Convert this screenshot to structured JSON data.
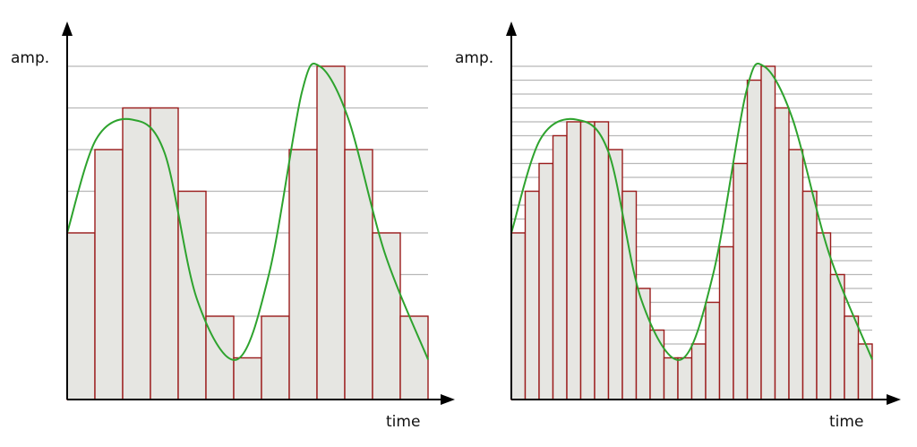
{
  "chart_data": [
    {
      "type": "bar",
      "ylabel": "amp.",
      "xlabel": "time",
      "levels": 8,
      "samples": 13,
      "values": [
        4,
        6,
        7,
        7,
        5,
        2,
        1,
        2,
        6,
        8,
        6,
        4,
        2
      ],
      "curve": {
        "type": "line",
        "description": "continuous analog signal",
        "color": "#2ea32e"
      },
      "bar_color": "#e6e6e2",
      "bar_edge_color": "#9b1c1c",
      "grid": true
    },
    {
      "type": "bar",
      "ylabel": "amp.",
      "xlabel": "time",
      "levels": 24,
      "samples": 26,
      "values": [
        12,
        15,
        17,
        19,
        20,
        20,
        20,
        18,
        15,
        8,
        5,
        3,
        3,
        4,
        7,
        11,
        17,
        23,
        24,
        21,
        18,
        15,
        12,
        9,
        6,
        4
      ],
      "curve": {
        "type": "line",
        "description": "continuous analog signal",
        "color": "#2ea32e"
      },
      "bar_color": "#e6e6e2",
      "bar_edge_color": "#9b1c1c",
      "grid": true
    }
  ]
}
